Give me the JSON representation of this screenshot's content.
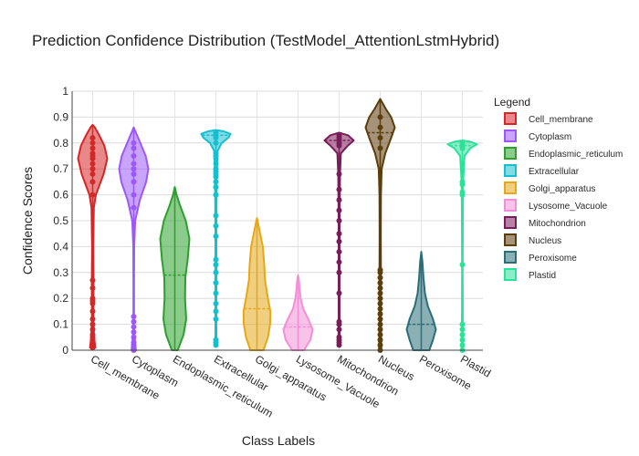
{
  "chart_data": {
    "type": "violin",
    "title": "Prediction Confidence Distribution (TestModel_AttentionLstmHybrid)",
    "xlabel": "Class Labels",
    "ylabel": "Confidence Scores",
    "ylim": [
      0,
      1
    ],
    "yticks": [
      "0",
      "0.1",
      "0.2",
      "0.3",
      "0.4",
      "0.5",
      "0.6",
      "0.7",
      "0.8",
      "0.9",
      "1"
    ],
    "grid": true,
    "legend": {
      "title": "Legend",
      "position": "right"
    },
    "categories": [
      "Cell_membrane",
      "Cytoplasm",
      "Endoplasmic_reticulum",
      "Extracellular",
      "Golgi_apparatus",
      "Lysosome_Vacuole",
      "Mitochondrion",
      "Nucleus",
      "Peroxisome",
      "Plastid"
    ],
    "series": [
      {
        "name": "Cell_membrane",
        "color": "#d62728",
        "ymin": 0.01,
        "ymax": 0.87,
        "mean": 0.6,
        "profile": [
          [
            0.01,
            0.18
          ],
          [
            0.05,
            0.1
          ],
          [
            0.12,
            0.05
          ],
          [
            0.25,
            0.06
          ],
          [
            0.4,
            0.04
          ],
          [
            0.55,
            0.08
          ],
          [
            0.6,
            0.22
          ],
          [
            0.68,
            0.75
          ],
          [
            0.74,
            1.0
          ],
          [
            0.79,
            0.8
          ],
          [
            0.83,
            0.45
          ],
          [
            0.86,
            0.15
          ],
          [
            0.87,
            0.0
          ]
        ],
        "points": [
          0.01,
          0.02,
          0.03,
          0.04,
          0.05,
          0.06,
          0.08,
          0.1,
          0.12,
          0.15,
          0.18,
          0.19,
          0.2,
          0.24,
          0.27,
          0.6,
          0.65,
          0.68,
          0.7,
          0.72,
          0.74,
          0.75,
          0.76,
          0.78,
          0.8,
          0.82
        ]
      },
      {
        "name": "Cytoplasm",
        "color": "#9b59f7",
        "ymin": 0.0,
        "ymax": 0.86,
        "mean": 0.55,
        "profile": [
          [
            0.0,
            0.15
          ],
          [
            0.05,
            0.06
          ],
          [
            0.1,
            0.02
          ],
          [
            0.25,
            0.02
          ],
          [
            0.4,
            0.03
          ],
          [
            0.5,
            0.1
          ],
          [
            0.58,
            0.42
          ],
          [
            0.65,
            0.85
          ],
          [
            0.7,
            1.0
          ],
          [
            0.75,
            0.82
          ],
          [
            0.8,
            0.45
          ],
          [
            0.84,
            0.15
          ],
          [
            0.86,
            0.0
          ]
        ],
        "points": [
          0.0,
          0.01,
          0.02,
          0.03,
          0.05,
          0.07,
          0.09,
          0.11,
          0.13,
          0.55,
          0.6,
          0.65,
          0.68,
          0.7,
          0.72,
          0.75,
          0.78,
          0.8
        ]
      },
      {
        "name": "Endoplasmic_reticulum",
        "color": "#2ca02c",
        "ymin": 0.0,
        "ymax": 0.63,
        "mean": 0.29,
        "profile": [
          [
            0.0,
            0.2
          ],
          [
            0.06,
            0.6
          ],
          [
            0.12,
            0.78
          ],
          [
            0.2,
            0.7
          ],
          [
            0.28,
            0.72
          ],
          [
            0.35,
            0.88
          ],
          [
            0.43,
            1.0
          ],
          [
            0.5,
            0.75
          ],
          [
            0.56,
            0.35
          ],
          [
            0.6,
            0.12
          ],
          [
            0.63,
            0.0
          ]
        ],
        "points": []
      },
      {
        "name": "Extracellular",
        "color": "#17becf",
        "ymin": 0.02,
        "ymax": 0.85,
        "mean": 0.83,
        "profile": [
          [
            0.02,
            0.04
          ],
          [
            0.1,
            0.03
          ],
          [
            0.2,
            0.03
          ],
          [
            0.3,
            0.04
          ],
          [
            0.45,
            0.03
          ],
          [
            0.6,
            0.05
          ],
          [
            0.7,
            0.07
          ],
          [
            0.77,
            0.12
          ],
          [
            0.8,
            0.4
          ],
          [
            0.82,
            0.85
          ],
          [
            0.835,
            1.0
          ],
          [
            0.845,
            0.55
          ],
          [
            0.85,
            0.0
          ]
        ],
        "points": [
          0.02,
          0.03,
          0.04,
          0.12,
          0.15,
          0.18,
          0.22,
          0.26,
          0.3,
          0.33,
          0.35,
          0.44,
          0.48,
          0.52,
          0.6,
          0.63,
          0.65,
          0.67,
          0.68,
          0.69,
          0.7,
          0.72,
          0.74,
          0.75,
          0.76,
          0.8,
          0.82,
          0.83,
          0.84
        ]
      },
      {
        "name": "Golgi_apparatus",
        "color": "#e6a817",
        "ymin": 0.0,
        "ymax": 0.51,
        "mean": 0.16,
        "profile": [
          [
            0.0,
            0.45
          ],
          [
            0.05,
            0.75
          ],
          [
            0.1,
            0.9
          ],
          [
            0.15,
            0.92
          ],
          [
            0.2,
            0.75
          ],
          [
            0.27,
            0.55
          ],
          [
            0.33,
            0.5
          ],
          [
            0.4,
            0.4
          ],
          [
            0.45,
            0.22
          ],
          [
            0.49,
            0.08
          ],
          [
            0.51,
            0.0
          ]
        ],
        "points": []
      },
      {
        "name": "Lysosome_Vacuole",
        "color": "#f38fd7",
        "ymin": 0.0,
        "ymax": 0.29,
        "mean": 0.09,
        "profile": [
          [
            0.0,
            0.4
          ],
          [
            0.04,
            0.85
          ],
          [
            0.08,
            1.0
          ],
          [
            0.12,
            0.7
          ],
          [
            0.16,
            0.35
          ],
          [
            0.2,
            0.18
          ],
          [
            0.24,
            0.1
          ],
          [
            0.27,
            0.06
          ],
          [
            0.29,
            0.0
          ]
        ],
        "points": []
      },
      {
        "name": "Mitochondrion",
        "color": "#7b1c5a",
        "ymin": 0.02,
        "ymax": 0.84,
        "mean": 0.81,
        "profile": [
          [
            0.02,
            0.05
          ],
          [
            0.1,
            0.03
          ],
          [
            0.25,
            0.03
          ],
          [
            0.4,
            0.03
          ],
          [
            0.55,
            0.04
          ],
          [
            0.68,
            0.06
          ],
          [
            0.76,
            0.12
          ],
          [
            0.79,
            0.6
          ],
          [
            0.81,
            1.0
          ],
          [
            0.83,
            0.6
          ],
          [
            0.84,
            0.0
          ]
        ],
        "points": [
          0.02,
          0.03,
          0.04,
          0.05,
          0.08,
          0.1,
          0.11,
          0.22,
          0.3,
          0.34,
          0.38,
          0.42,
          0.45,
          0.5,
          0.54,
          0.58,
          0.62,
          0.68,
          0.79,
          0.8,
          0.81,
          0.82,
          0.83
        ]
      },
      {
        "name": "Nucleus",
        "color": "#5c3d0c",
        "ymin": 0.0,
        "ymax": 0.97,
        "mean": 0.84,
        "profile": [
          [
            0.0,
            0.08
          ],
          [
            0.1,
            0.05
          ],
          [
            0.2,
            0.05
          ],
          [
            0.3,
            0.05
          ],
          [
            0.45,
            0.04
          ],
          [
            0.6,
            0.05
          ],
          [
            0.7,
            0.1
          ],
          [
            0.76,
            0.35
          ],
          [
            0.82,
            0.75
          ],
          [
            0.86,
            1.0
          ],
          [
            0.9,
            0.75
          ],
          [
            0.93,
            0.4
          ],
          [
            0.96,
            0.1
          ],
          [
            0.97,
            0.0
          ]
        ],
        "points": [
          0.0,
          0.02,
          0.04,
          0.06,
          0.08,
          0.1,
          0.12,
          0.14,
          0.16,
          0.18,
          0.2,
          0.22,
          0.24,
          0.26,
          0.28,
          0.3,
          0.31,
          0.78,
          0.82,
          0.86,
          0.9
        ]
      },
      {
        "name": "Peroxisome",
        "color": "#2a6f78",
        "ymin": 0.0,
        "ymax": 0.38,
        "mean": 0.1,
        "profile": [
          [
            0.0,
            0.55
          ],
          [
            0.04,
            0.8
          ],
          [
            0.08,
            1.0
          ],
          [
            0.12,
            0.8
          ],
          [
            0.17,
            0.45
          ],
          [
            0.22,
            0.25
          ],
          [
            0.28,
            0.15
          ],
          [
            0.34,
            0.08
          ],
          [
            0.38,
            0.0
          ]
        ],
        "points": []
      },
      {
        "name": "Plastid",
        "color": "#2ee09a",
        "ymin": 0.0,
        "ymax": 0.81,
        "mean": 0.79,
        "profile": [
          [
            0.0,
            0.05
          ],
          [
            0.1,
            0.03
          ],
          [
            0.3,
            0.02
          ],
          [
            0.5,
            0.03
          ],
          [
            0.65,
            0.05
          ],
          [
            0.75,
            0.15
          ],
          [
            0.78,
            0.55
          ],
          [
            0.795,
            1.0
          ],
          [
            0.805,
            0.55
          ],
          [
            0.81,
            0.0
          ]
        ],
        "points": [
          0.0,
          0.02,
          0.04,
          0.06,
          0.08,
          0.1,
          0.33,
          0.6,
          0.61,
          0.64,
          0.65,
          0.72,
          0.78,
          0.79,
          0.8
        ]
      }
    ]
  }
}
